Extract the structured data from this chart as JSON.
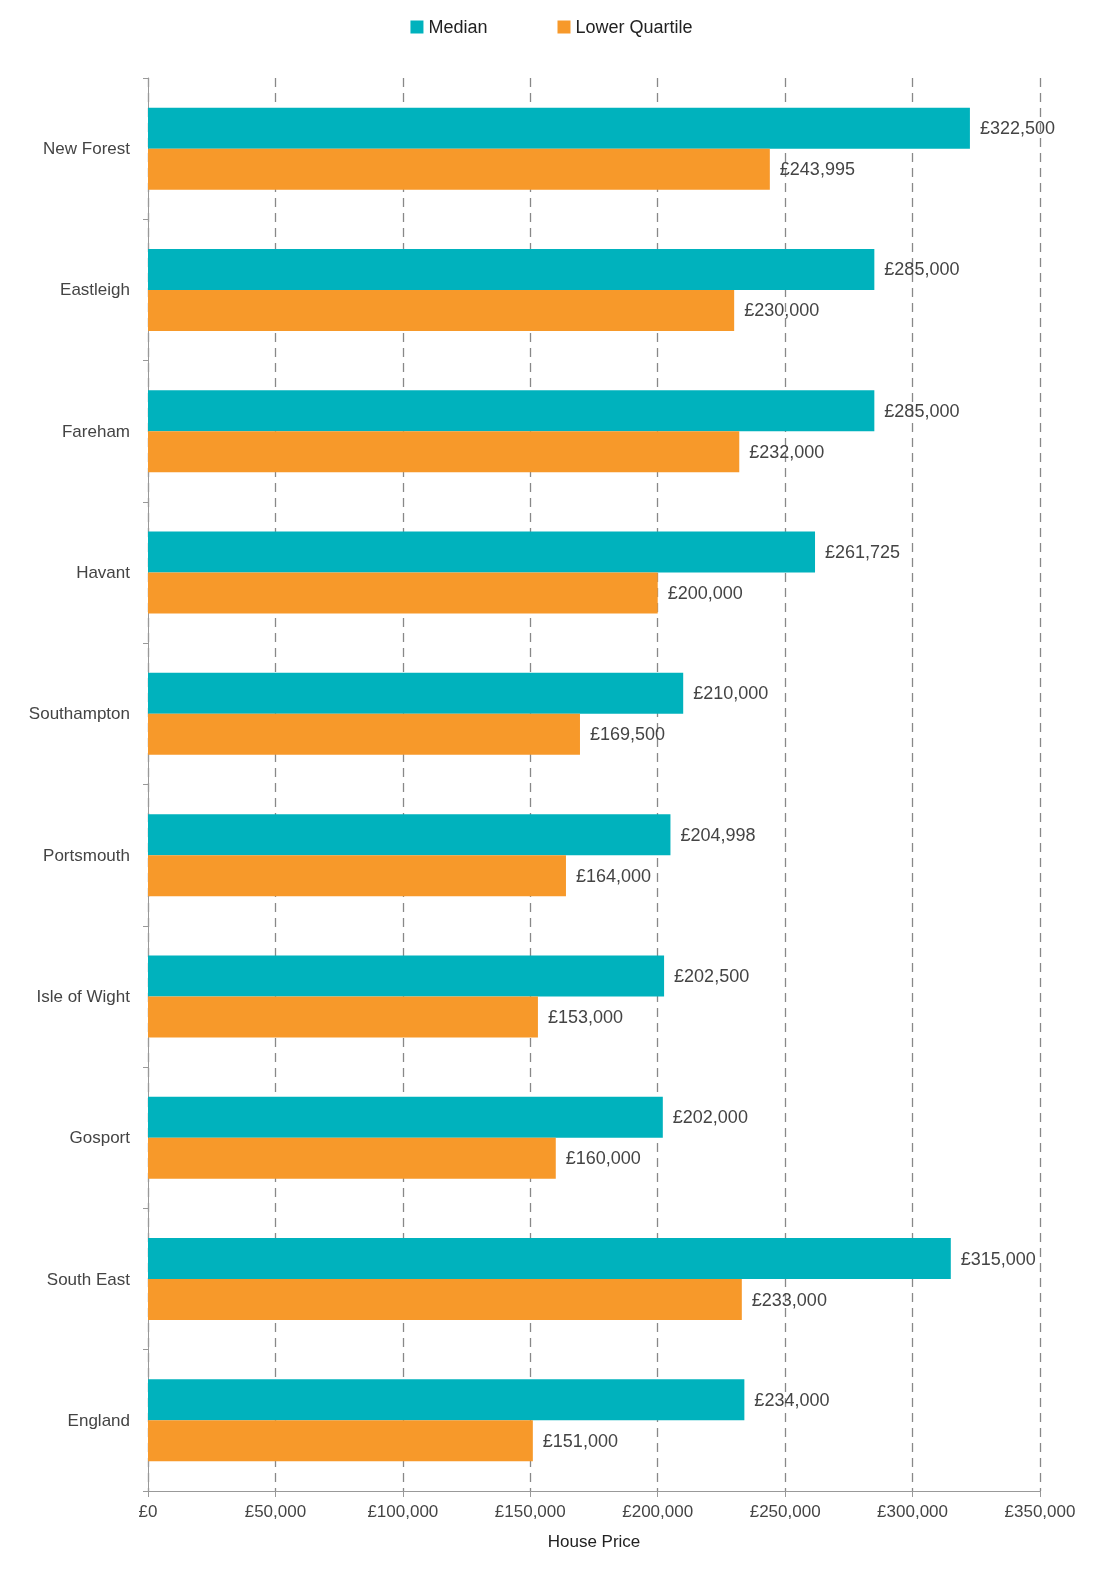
{
  "chart_data": {
    "type": "bar",
    "orientation": "horizontal",
    "xlabel": "House Price",
    "categories": [
      "New Forest",
      "Eastleigh",
      "Fareham",
      "Havant",
      "Southampton",
      "Portsmouth",
      "Isle of Wight",
      "Gosport",
      "South East",
      "England"
    ],
    "series": [
      {
        "name": "Median",
        "color": "#00b2bd",
        "values": [
          322500,
          285000,
          285000,
          261725,
          210000,
          204998,
          202500,
          202000,
          315000,
          234000
        ],
        "value_labels": [
          "£322,500",
          "£285,000",
          "£285,000",
          "£261,725",
          "£210,000",
          "£204,998",
          "£202,500",
          "£202,000",
          "£315,000",
          "£234,000"
        ]
      },
      {
        "name": "Lower Quartile",
        "color": "#f7992a",
        "values": [
          243995,
          230000,
          232000,
          200000,
          169500,
          164000,
          153000,
          160000,
          233000,
          151000
        ],
        "value_labels": [
          "£243,995",
          "£230,000",
          "£232,000",
          "£200,000",
          "£169,500",
          "£164,000",
          "£153,000",
          "£160,000",
          "£233,000",
          "£151,000"
        ]
      }
    ],
    "xlim": [
      0,
      350000
    ],
    "xticks": [
      {
        "value": 0,
        "label": "£0"
      },
      {
        "value": 50000,
        "label": "£50,000"
      },
      {
        "value": 100000,
        "label": "£100,000"
      },
      {
        "value": 150000,
        "label": "£150,000"
      },
      {
        "value": 200000,
        "label": "£200,000"
      },
      {
        "value": 250000,
        "label": "£250,000"
      },
      {
        "value": 300000,
        "label": "£300,000"
      },
      {
        "value": 350000,
        "label": "£350,000"
      }
    ],
    "grid": "x",
    "legend": "top"
  }
}
